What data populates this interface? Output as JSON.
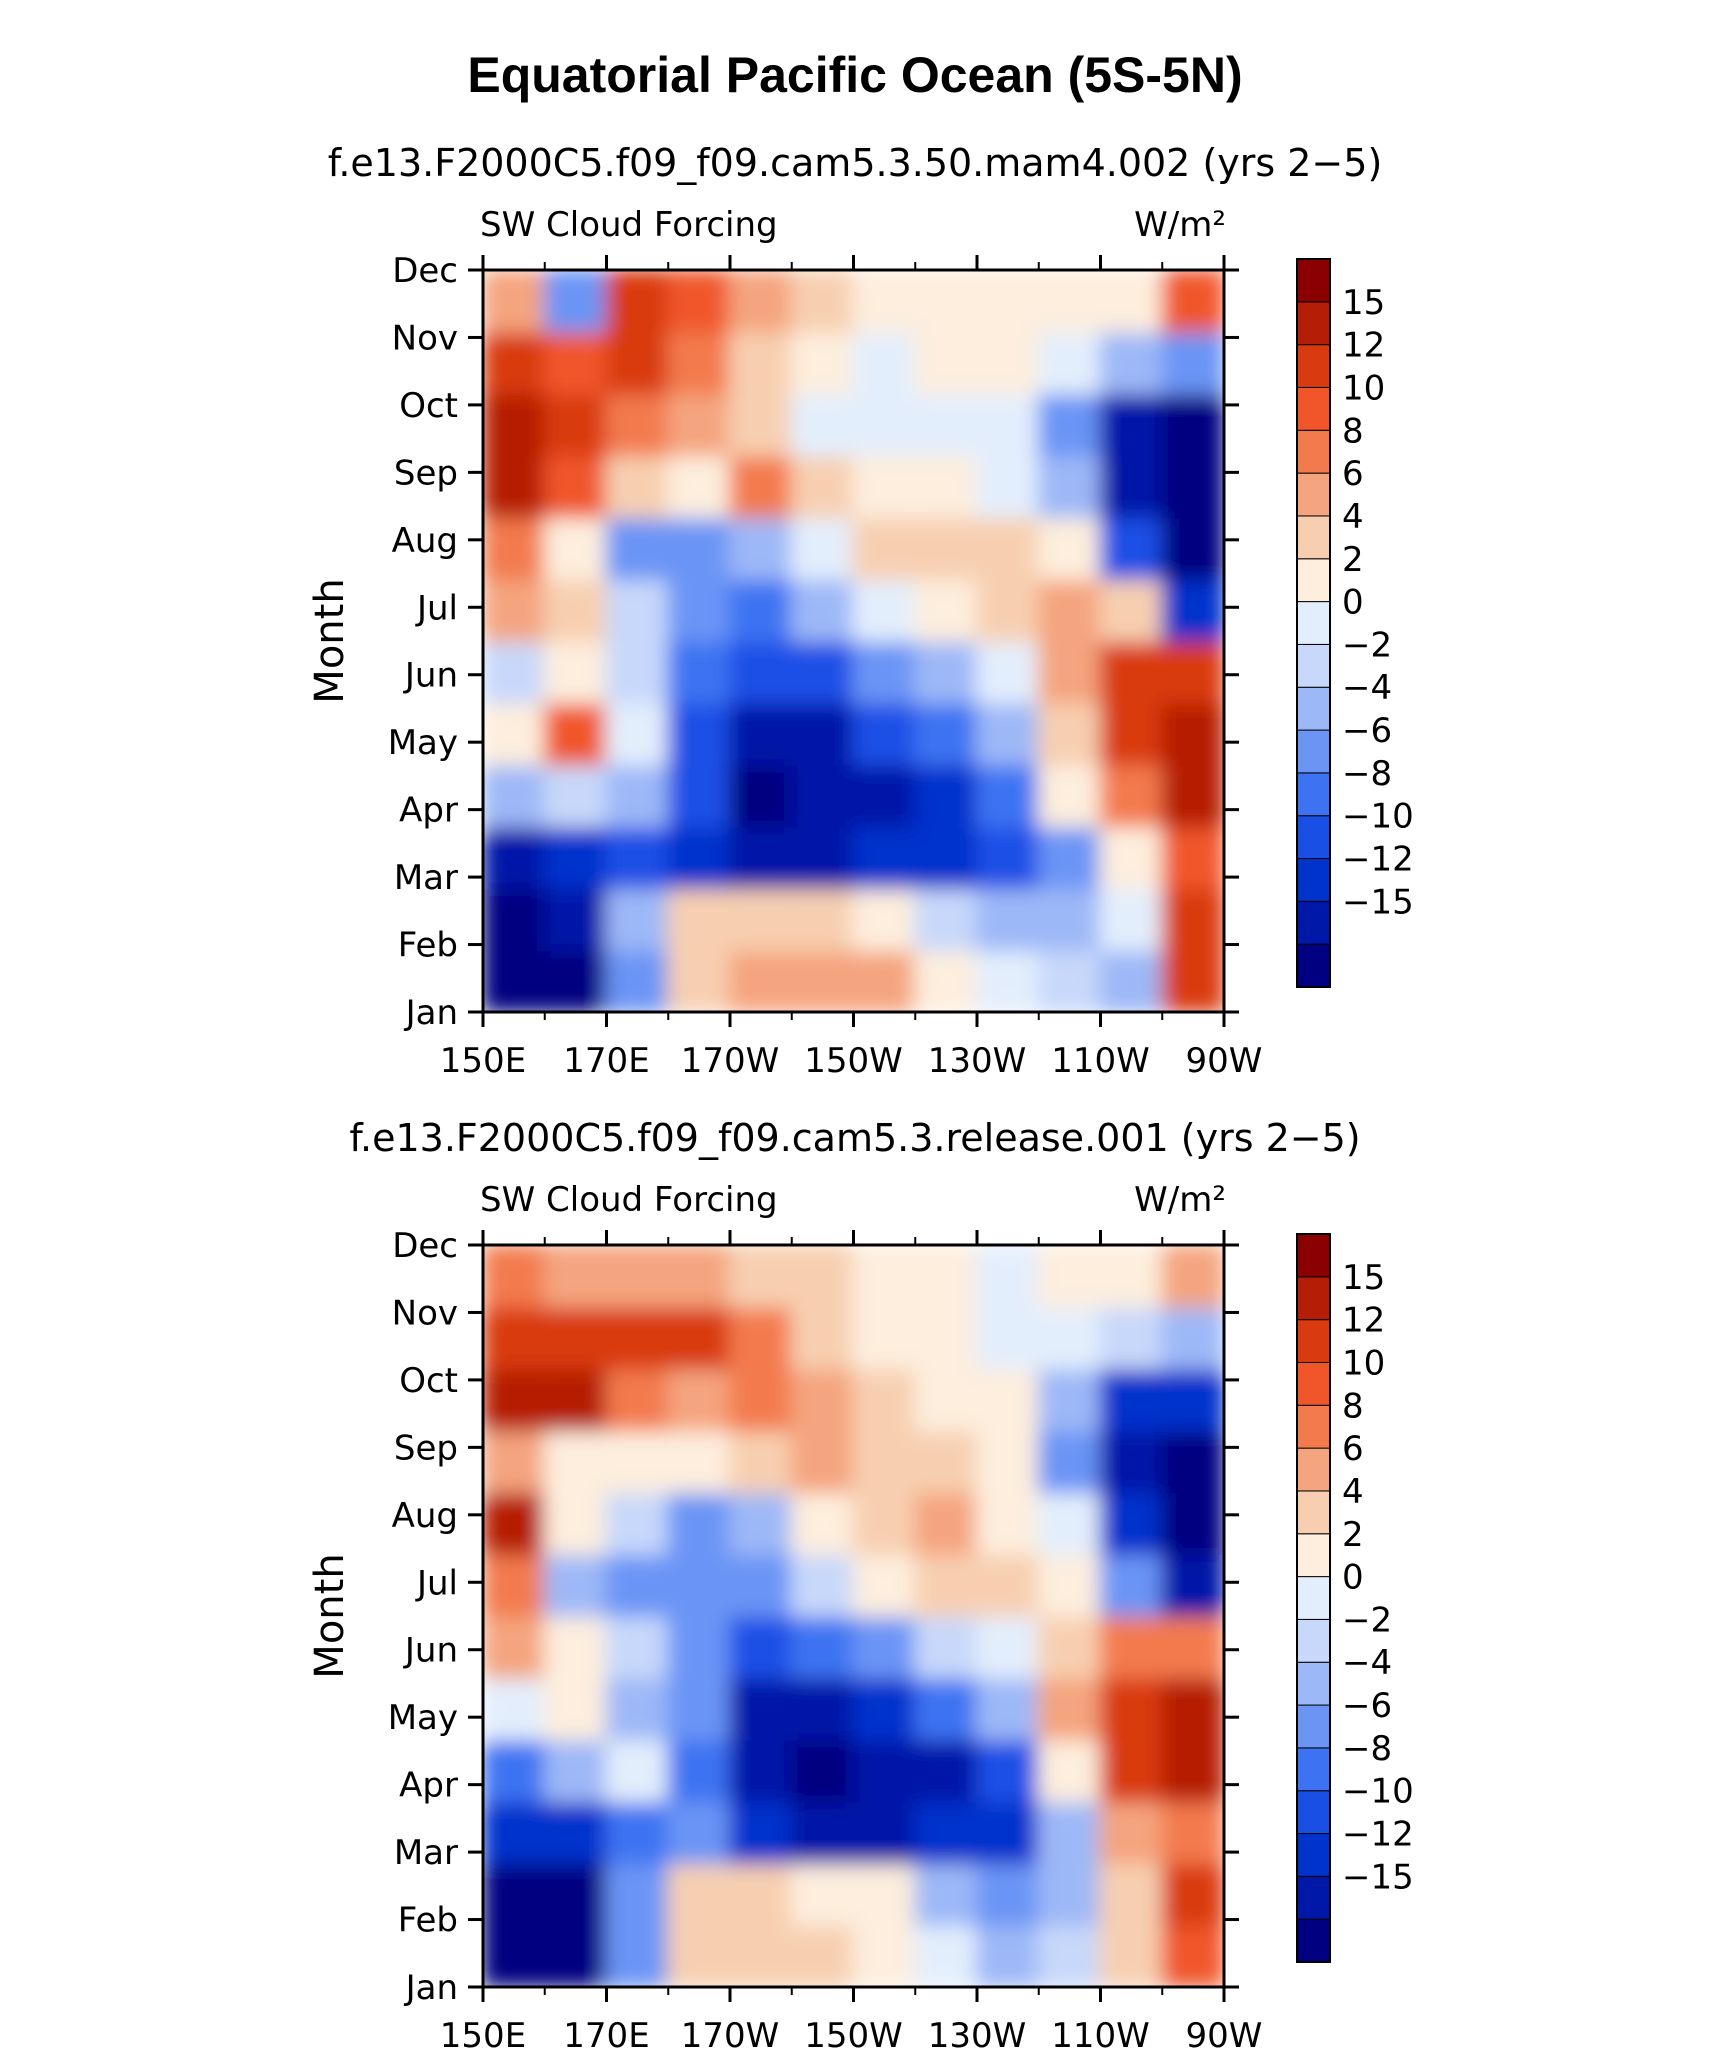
{
  "figure": {
    "title": "Equatorial Pacific Ocean (5S-5N)"
  },
  "colorbar": {
    "colors": [
      "#000080",
      "#0018a8",
      "#0033cc",
      "#1a4fe6",
      "#3d73f2",
      "#6b94f5",
      "#9db8f7",
      "#c7d8fa",
      "#e3eefc",
      "#fdeedd",
      "#f7cfb0",
      "#f4a47e",
      "#f37a4d",
      "#f0562a",
      "#d93a10",
      "#b51e06",
      "#8b0000"
    ],
    "labels": [
      "15",
      "12",
      "10",
      "8",
      "6",
      "4",
      "2",
      "0",
      "−2",
      "−4",
      "−6",
      "−8",
      "−10",
      "−12",
      "−15"
    ]
  },
  "chart_data": [
    {
      "type": "heatmap",
      "title": "f.e13.F2000C5.f09_f09.cam5.3.50.mam4.002 (yrs 2−5)",
      "left_label": "SW Cloud Forcing",
      "right_label": "W/m²",
      "ylabel": "Month",
      "x_tick_labels": [
        "150E",
        "170E",
        "170W",
        "150W",
        "130W",
        "110W",
        "90W"
      ],
      "y_tick_labels": [
        "Jan",
        "Feb",
        "Mar",
        "Apr",
        "May",
        "Jun",
        "Jul",
        "Aug",
        "Sep",
        "Oct",
        "Nov",
        "Dec"
      ],
      "x_range_deg_east": [
        150,
        270
      ],
      "value_range": [
        -16,
        16
      ],
      "rows": [
        [
          -16,
          -16,
          -5,
          4,
          7,
          7,
          6,
          3,
          1,
          -2,
          -3,
          14
        ],
        [
          -16,
          -14,
          -3,
          5,
          5,
          4,
          2,
          -2,
          -3,
          -4,
          0,
          12
        ],
        [
          -15,
          -12,
          -9,
          -12,
          -14,
          -13,
          -12,
          -11,
          -10,
          -5,
          3,
          10
        ],
        [
          -4,
          -1,
          -3,
          -10,
          -16,
          -15,
          -13,
          -11,
          -8,
          2,
          8,
          16
        ],
        [
          3,
          11,
          1,
          -9,
          -13,
          -13,
          -10,
          -7,
          -4,
          5,
          13,
          16
        ],
        [
          -1,
          3,
          -2,
          -7,
          -10,
          -9,
          -6,
          -3,
          1,
          6,
          12,
          14
        ],
        [
          6,
          5,
          -2,
          -6,
          -8,
          -4,
          0,
          3,
          5,
          6,
          4,
          -12
        ],
        [
          9,
          3,
          -5,
          -6,
          -4,
          0,
          4,
          5,
          4,
          2,
          -9,
          -16
        ],
        [
          15,
          11,
          5,
          2,
          9,
          5,
          3,
          2,
          1,
          -3,
          -13,
          -16
        ],
        [
          16,
          14,
          9,
          7,
          4,
          1,
          0,
          1,
          0,
          -6,
          -14,
          -16
        ],
        [
          13,
          10,
          13,
          9,
          5,
          3,
          1,
          2,
          3,
          1,
          -3,
          -6
        ],
        [
          6,
          -6,
          12,
          11,
          7,
          4,
          2,
          2,
          3,
          3,
          2,
          10
        ]
      ]
    },
    {
      "type": "heatmap",
      "title": "f.e13.F2000C5.f09_f09.cam5.3.release.001 (yrs 2−5)",
      "left_label": "SW Cloud Forcing",
      "right_label": "W/m²",
      "ylabel": "Month",
      "x_tick_labels": [
        "150E",
        "170E",
        "170W",
        "150W",
        "130W",
        "110W",
        "90W"
      ],
      "y_tick_labels": [
        "Jan",
        "Feb",
        "Mar",
        "Apr",
        "May",
        "Jun",
        "Jul",
        "Aug",
        "Sep",
        "Oct",
        "Nov",
        "Dec"
      ],
      "x_range_deg_east": [
        150,
        270
      ],
      "value_range": [
        -16,
        16
      ],
      "rows": [
        [
          -16,
          -16,
          -6,
          5,
          5,
          4,
          3,
          1,
          -3,
          -2,
          5,
          10
        ],
        [
          -16,
          -16,
          -5,
          4,
          4,
          3,
          2,
          -4,
          -6,
          -3,
          4,
          12
        ],
        [
          -12,
          -11,
          -8,
          -6,
          -12,
          -13,
          -13,
          -12,
          -11,
          -3,
          6,
          9
        ],
        [
          -8,
          -4,
          0,
          -7,
          -14,
          -16,
          -15,
          -13,
          -10,
          2,
          12,
          16
        ],
        [
          0,
          3,
          -3,
          -6,
          -13,
          -14,
          -11,
          -8,
          -4,
          6,
          13,
          16
        ],
        [
          7,
          3,
          -1,
          -5,
          -10,
          -8,
          -5,
          -2,
          1,
          5,
          8,
          9
        ],
        [
          8,
          -3,
          -5,
          -6,
          -6,
          -2,
          2,
          4,
          5,
          3,
          -5,
          -14
        ],
        [
          15,
          2,
          -2,
          -6,
          -3,
          2,
          5,
          6,
          3,
          0,
          -12,
          -16
        ],
        [
          7,
          3,
          2,
          3,
          4,
          7,
          5,
          4,
          2,
          -6,
          -14,
          -16
        ],
        [
          16,
          15,
          9,
          7,
          8,
          6,
          4,
          3,
          2,
          -4,
          -12,
          -12
        ],
        [
          14,
          12,
          14,
          12,
          8,
          5,
          3,
          2,
          1,
          0,
          -2,
          -4
        ],
        [
          8,
          7,
          6,
          6,
          5,
          4,
          3,
          2,
          1,
          2,
          3,
          7
        ]
      ]
    }
  ]
}
